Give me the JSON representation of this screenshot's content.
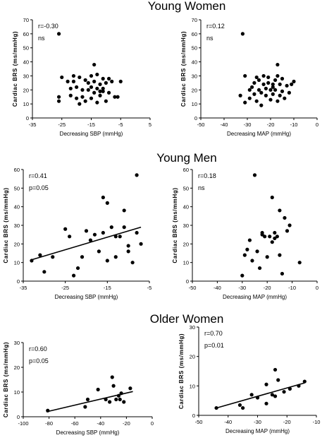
{
  "figure": {
    "groups": [
      {
        "title": "Young Women"
      },
      {
        "title": "Young Men"
      },
      {
        "title": "Older Women"
      }
    ]
  },
  "chart_data": [
    {
      "type": "scatter",
      "group": "Young Women",
      "xlabel": "Decreasing SBP (mmHg)",
      "ylabel": "Cardiac BRS (ms/mmHg)",
      "xlim": [
        -35,
        5
      ],
      "ylim": [
        0,
        70
      ],
      "xticks": [
        -35,
        -25,
        -15,
        -5,
        5
      ],
      "yticks": [
        0,
        10,
        20,
        30,
        40,
        50,
        60,
        70
      ],
      "annotations": [
        "r=-0.30",
        "ns"
      ],
      "points": [
        [
          -26,
          60
        ],
        [
          -26,
          15
        ],
        [
          -26,
          12
        ],
        [
          -25,
          29
        ],
        [
          -23,
          26
        ],
        [
          -22,
          16
        ],
        [
          -22,
          21
        ],
        [
          -21,
          30
        ],
        [
          -21,
          26
        ],
        [
          -20,
          14
        ],
        [
          -20,
          22
        ],
        [
          -19,
          10
        ],
        [
          -19,
          29
        ],
        [
          -18,
          15
        ],
        [
          -18,
          20
        ],
        [
          -17,
          27
        ],
        [
          -17,
          12
        ],
        [
          -16,
          25
        ],
        [
          -16,
          20
        ],
        [
          -15,
          30
        ],
        [
          -15,
          22
        ],
        [
          -15,
          14
        ],
        [
          -14,
          38
        ],
        [
          -14,
          26
        ],
        [
          -14,
          18
        ],
        [
          -13,
          31
        ],
        [
          -13,
          21
        ],
        [
          -13,
          11
        ],
        [
          -12,
          24
        ],
        [
          -12,
          19
        ],
        [
          -12,
          16
        ],
        [
          -11,
          28
        ],
        [
          -11,
          19
        ],
        [
          -11,
          21
        ],
        [
          -10,
          25
        ],
        [
          -10,
          12
        ],
        [
          -9,
          28
        ],
        [
          -9,
          18
        ],
        [
          -8,
          26
        ],
        [
          -7,
          15
        ],
        [
          -6,
          15
        ],
        [
          -5,
          26
        ]
      ]
    },
    {
      "type": "scatter",
      "group": "Young Women",
      "xlabel": "Decreasing MAP (mmHg)",
      "ylabel": "Cardiac BRS (ms/mmHg)",
      "xlim": [
        -50,
        0
      ],
      "ylim": [
        0,
        70
      ],
      "xticks": [
        -50,
        -40,
        -30,
        -20,
        -10,
        0
      ],
      "yticks": [
        0,
        10,
        20,
        30,
        40,
        50,
        60,
        70
      ],
      "annotations": [
        "r=0.12",
        "ns"
      ],
      "points": [
        [
          -32,
          60
        ],
        [
          -33,
          16
        ],
        [
          -31,
          30
        ],
        [
          -31,
          11
        ],
        [
          -29,
          20
        ],
        [
          -29,
          14
        ],
        [
          -28,
          22
        ],
        [
          -27,
          25
        ],
        [
          -27,
          17
        ],
        [
          -26,
          29
        ],
        [
          -26,
          12
        ],
        [
          -25,
          20
        ],
        [
          -25,
          27
        ],
        [
          -24,
          18
        ],
        [
          -24,
          9
        ],
        [
          -23,
          30
        ],
        [
          -23,
          24
        ],
        [
          -22,
          16
        ],
        [
          -22,
          21
        ],
        [
          -21,
          25
        ],
        [
          -21,
          29
        ],
        [
          -20,
          20
        ],
        [
          -20,
          13
        ],
        [
          -19,
          24
        ],
        [
          -19,
          17
        ],
        [
          -19,
          22
        ],
        [
          -18,
          27
        ],
        [
          -18,
          20
        ],
        [
          -17,
          38
        ],
        [
          -17,
          30
        ],
        [
          -17,
          12
        ],
        [
          -16,
          24
        ],
        [
          -16,
          16
        ],
        [
          -15,
          28
        ],
        [
          -15,
          19
        ],
        [
          -14,
          14
        ],
        [
          -13,
          23
        ],
        [
          -12,
          18
        ],
        [
          -11,
          24
        ],
        [
          -10,
          26
        ]
      ]
    },
    {
      "type": "scatter",
      "group": "Young Men",
      "xlabel": "Decreasing SBP (mmHg)",
      "ylabel": "Cardiac BRS (ms/mmHg)",
      "xlim": [
        -35,
        -5
      ],
      "ylim": [
        0,
        60
      ],
      "xticks": [
        -35,
        -25,
        -15,
        -5
      ],
      "yticks": [
        0,
        10,
        20,
        30,
        40,
        50,
        60
      ],
      "annotations": [
        "r=0.41",
        "p=0.05"
      ],
      "points": [
        [
          -33,
          11
        ],
        [
          -31,
          14
        ],
        [
          -30,
          5
        ],
        [
          -28,
          13
        ],
        [
          -25,
          28
        ],
        [
          -24,
          24
        ],
        [
          -23,
          3
        ],
        [
          -22,
          7
        ],
        [
          -21,
          13
        ],
        [
          -20,
          27
        ],
        [
          -19,
          22
        ],
        [
          -18,
          25
        ],
        [
          -17,
          16
        ],
        [
          -16,
          45
        ],
        [
          -16,
          26
        ],
        [
          -15,
          42
        ],
        [
          -15,
          11
        ],
        [
          -14,
          29
        ],
        [
          -13,
          13
        ],
        [
          -13,
          24
        ],
        [
          -12,
          24
        ],
        [
          -11,
          38
        ],
        [
          -11,
          29
        ],
        [
          -10,
          19
        ],
        [
          -10,
          16
        ],
        [
          -9,
          10
        ],
        [
          -8,
          57
        ],
        [
          -8,
          26
        ],
        [
          -7,
          20
        ]
      ],
      "fit": {
        "x": [
          -33,
          -7
        ],
        "y": [
          11.5,
          29
        ]
      }
    },
    {
      "type": "scatter",
      "group": "Young Men",
      "xlabel": "Decreasing MAP (mmHg)",
      "ylabel": "Cardiac BRS (ms/mmHg)",
      "xlim": [
        -50,
        0
      ],
      "ylim": [
        0,
        60
      ],
      "xticks": [
        -50,
        -40,
        -30,
        -20,
        -10,
        0
      ],
      "yticks": [
        0,
        10,
        20,
        30,
        40,
        50,
        60
      ],
      "annotations": [
        "r=0.18",
        "ns"
      ],
      "points": [
        [
          -30,
          3
        ],
        [
          -29,
          14
        ],
        [
          -28,
          17
        ],
        [
          -27,
          22
        ],
        [
          -26,
          11
        ],
        [
          -25,
          57
        ],
        [
          -24,
          16
        ],
        [
          -23,
          7
        ],
        [
          -22,
          26
        ],
        [
          -22,
          25
        ],
        [
          -21,
          24
        ],
        [
          -20,
          13
        ],
        [
          -19,
          24
        ],
        [
          -18,
          45
        ],
        [
          -18,
          21
        ],
        [
          -17,
          26
        ],
        [
          -17,
          23
        ],
        [
          -16,
          24
        ],
        [
          -15,
          38
        ],
        [
          -15,
          14
        ],
        [
          -14,
          4
        ],
        [
          -13,
          34
        ],
        [
          -12,
          27
        ],
        [
          -11,
          30
        ],
        [
          -7,
          10
        ]
      ]
    },
    {
      "type": "scatter",
      "group": "Older Women",
      "xlabel": "Decreasing SBP (mmHg)",
      "ylabel": "Cardiac BRS (ms/mmHg)",
      "xlim": [
        -100,
        0
      ],
      "ylim": [
        0,
        30
      ],
      "xticks": [
        -100,
        -80,
        -60,
        -40,
        -20,
        0
      ],
      "yticks": [
        0,
        10,
        20,
        30
      ],
      "annotations": [
        "r=0.60",
        "p=0.05"
      ],
      "points": [
        [
          -81,
          2.5
        ],
        [
          -52,
          4
        ],
        [
          -50,
          7
        ],
        [
          -42,
          11
        ],
        [
          -36,
          7
        ],
        [
          -33,
          6
        ],
        [
          -31,
          16
        ],
        [
          -30,
          12.5
        ],
        [
          -28,
          7
        ],
        [
          -26,
          8.5
        ],
        [
          -25,
          7
        ],
        [
          -24,
          9.5
        ],
        [
          -22,
          6
        ],
        [
          -17,
          11.5
        ]
      ],
      "fit": {
        "x": [
          -82,
          -15
        ],
        "y": [
          2,
          10.2
        ]
      }
    },
    {
      "type": "scatter",
      "group": "Older Women",
      "xlabel": "Decreasing MAP (mmHg)",
      "ylabel": "Cardiac BRS (ms/mmHg)",
      "xlim": [
        -50,
        -10
      ],
      "ylim": [
        0,
        30
      ],
      "xticks": [
        -50,
        -40,
        -30,
        -20,
        -10
      ],
      "yticks": [
        0,
        10,
        20,
        30
      ],
      "annotations": [
        "r=0.70",
        "p=0.01"
      ],
      "points": [
        [
          -44,
          2.5
        ],
        [
          -36,
          3.5
        ],
        [
          -35,
          2.5
        ],
        [
          -32,
          7
        ],
        [
          -30,
          6
        ],
        [
          -27,
          10.5
        ],
        [
          -27,
          4
        ],
        [
          -25,
          7
        ],
        [
          -24,
          15.5
        ],
        [
          -24,
          6.5
        ],
        [
          -23,
          12
        ],
        [
          -21,
          8
        ],
        [
          -19,
          9
        ],
        [
          -16,
          10
        ],
        [
          -14,
          11.5
        ]
      ],
      "fit": {
        "x": [
          -44,
          -14
        ],
        "y": [
          2.5,
          11
        ]
      }
    }
  ]
}
